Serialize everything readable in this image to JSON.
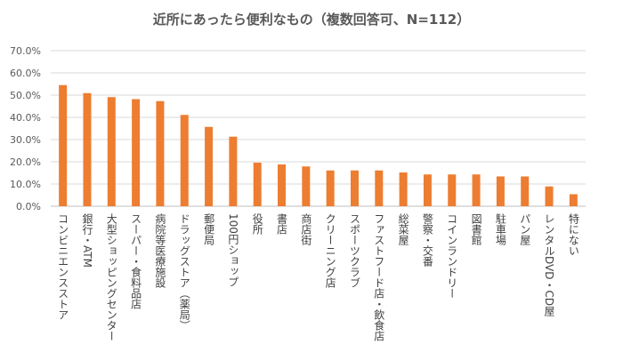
{
  "chart_data": {
    "type": "bar",
    "title": "近所にあったら便利なもの（複数回答可、N=112）",
    "xlabel": "",
    "ylabel": "",
    "ylim": [
      0,
      70
    ],
    "y_ticks": [
      "0.0%",
      "10.0%",
      "20.0%",
      "30.0%",
      "40.0%",
      "50.0%",
      "60.0%",
      "70.0%"
    ],
    "grid": true,
    "bar_color": "#ED7D31",
    "categories": [
      "コンビニエンスストア",
      "銀行・ATM",
      "大型ショッピングセンター",
      "スーパー・食料品店",
      "病院等医療施設",
      "ドラッグストア（薬局）",
      "郵便局",
      "100円ショップ",
      "役所",
      "書店",
      "商店街",
      "クリーニング店",
      "スポーツクラブ",
      "ファストフード店・飲食店",
      "総菜屋",
      "警察・交番",
      "コインランドリー",
      "図書館",
      "駐車場",
      "パン屋",
      "レンタルDVD・CD屋",
      "特にない"
    ],
    "values": [
      54.5,
      50.9,
      49.1,
      48.2,
      47.3,
      41.1,
      35.7,
      31.3,
      19.6,
      18.8,
      17.9,
      16.1,
      16.1,
      16.1,
      15.2,
      14.3,
      14.3,
      14.3,
      13.4,
      13.4,
      8.9,
      5.4
    ]
  }
}
